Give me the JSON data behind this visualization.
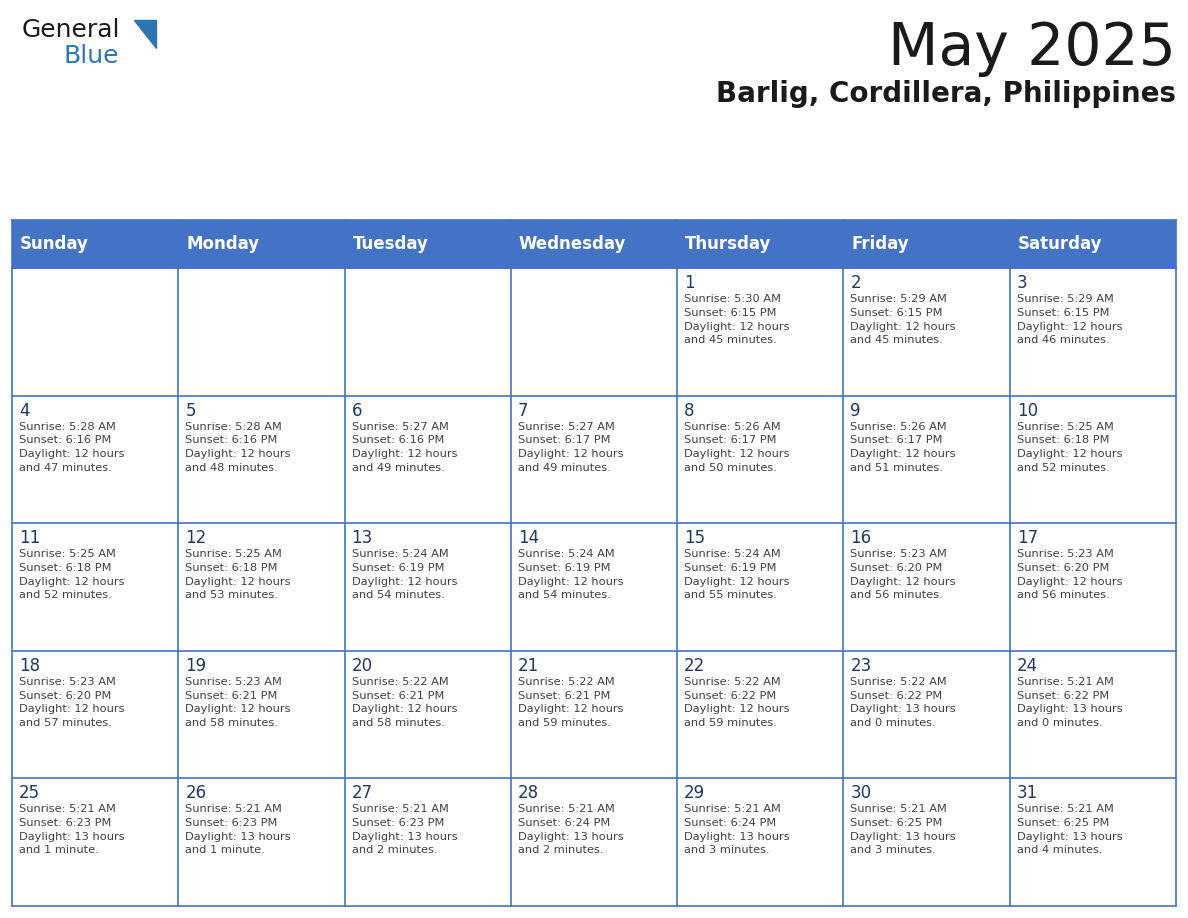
{
  "title": "May 2025",
  "subtitle": "Barlig, Cordillera, Philippines",
  "days_of_week": [
    "Sunday",
    "Monday",
    "Tuesday",
    "Wednesday",
    "Thursday",
    "Friday",
    "Saturday"
  ],
  "header_bg": "#4472C4",
  "header_text": "#FFFFFF",
  "cell_bg": "#FFFFFF",
  "day_number_color": "#1F3864",
  "text_color": "#404040",
  "line_color": "#4472C4",
  "title_color": "#1a1a1a",
  "subtitle_color": "#1a1a1a",
  "logo_text_color": "#1a1a1a",
  "logo_blue_color": "#2E75B6",
  "weeks": [
    [
      {
        "day": null,
        "info": ""
      },
      {
        "day": null,
        "info": ""
      },
      {
        "day": null,
        "info": ""
      },
      {
        "day": null,
        "info": ""
      },
      {
        "day": 1,
        "info": "Sunrise: 5:30 AM\nSunset: 6:15 PM\nDaylight: 12 hours\nand 45 minutes."
      },
      {
        "day": 2,
        "info": "Sunrise: 5:29 AM\nSunset: 6:15 PM\nDaylight: 12 hours\nand 45 minutes."
      },
      {
        "day": 3,
        "info": "Sunrise: 5:29 AM\nSunset: 6:15 PM\nDaylight: 12 hours\nand 46 minutes."
      }
    ],
    [
      {
        "day": 4,
        "info": "Sunrise: 5:28 AM\nSunset: 6:16 PM\nDaylight: 12 hours\nand 47 minutes."
      },
      {
        "day": 5,
        "info": "Sunrise: 5:28 AM\nSunset: 6:16 PM\nDaylight: 12 hours\nand 48 minutes."
      },
      {
        "day": 6,
        "info": "Sunrise: 5:27 AM\nSunset: 6:16 PM\nDaylight: 12 hours\nand 49 minutes."
      },
      {
        "day": 7,
        "info": "Sunrise: 5:27 AM\nSunset: 6:17 PM\nDaylight: 12 hours\nand 49 minutes."
      },
      {
        "day": 8,
        "info": "Sunrise: 5:26 AM\nSunset: 6:17 PM\nDaylight: 12 hours\nand 50 minutes."
      },
      {
        "day": 9,
        "info": "Sunrise: 5:26 AM\nSunset: 6:17 PM\nDaylight: 12 hours\nand 51 minutes."
      },
      {
        "day": 10,
        "info": "Sunrise: 5:25 AM\nSunset: 6:18 PM\nDaylight: 12 hours\nand 52 minutes."
      }
    ],
    [
      {
        "day": 11,
        "info": "Sunrise: 5:25 AM\nSunset: 6:18 PM\nDaylight: 12 hours\nand 52 minutes."
      },
      {
        "day": 12,
        "info": "Sunrise: 5:25 AM\nSunset: 6:18 PM\nDaylight: 12 hours\nand 53 minutes."
      },
      {
        "day": 13,
        "info": "Sunrise: 5:24 AM\nSunset: 6:19 PM\nDaylight: 12 hours\nand 54 minutes."
      },
      {
        "day": 14,
        "info": "Sunrise: 5:24 AM\nSunset: 6:19 PM\nDaylight: 12 hours\nand 54 minutes."
      },
      {
        "day": 15,
        "info": "Sunrise: 5:24 AM\nSunset: 6:19 PM\nDaylight: 12 hours\nand 55 minutes."
      },
      {
        "day": 16,
        "info": "Sunrise: 5:23 AM\nSunset: 6:20 PM\nDaylight: 12 hours\nand 56 minutes."
      },
      {
        "day": 17,
        "info": "Sunrise: 5:23 AM\nSunset: 6:20 PM\nDaylight: 12 hours\nand 56 minutes."
      }
    ],
    [
      {
        "day": 18,
        "info": "Sunrise: 5:23 AM\nSunset: 6:20 PM\nDaylight: 12 hours\nand 57 minutes."
      },
      {
        "day": 19,
        "info": "Sunrise: 5:23 AM\nSunset: 6:21 PM\nDaylight: 12 hours\nand 58 minutes."
      },
      {
        "day": 20,
        "info": "Sunrise: 5:22 AM\nSunset: 6:21 PM\nDaylight: 12 hours\nand 58 minutes."
      },
      {
        "day": 21,
        "info": "Sunrise: 5:22 AM\nSunset: 6:21 PM\nDaylight: 12 hours\nand 59 minutes."
      },
      {
        "day": 22,
        "info": "Sunrise: 5:22 AM\nSunset: 6:22 PM\nDaylight: 12 hours\nand 59 minutes."
      },
      {
        "day": 23,
        "info": "Sunrise: 5:22 AM\nSunset: 6:22 PM\nDaylight: 13 hours\nand 0 minutes."
      },
      {
        "day": 24,
        "info": "Sunrise: 5:21 AM\nSunset: 6:22 PM\nDaylight: 13 hours\nand 0 minutes."
      }
    ],
    [
      {
        "day": 25,
        "info": "Sunrise: 5:21 AM\nSunset: 6:23 PM\nDaylight: 13 hours\nand 1 minute."
      },
      {
        "day": 26,
        "info": "Sunrise: 5:21 AM\nSunset: 6:23 PM\nDaylight: 13 hours\nand 1 minute."
      },
      {
        "day": 27,
        "info": "Sunrise: 5:21 AM\nSunset: 6:23 PM\nDaylight: 13 hours\nand 2 minutes."
      },
      {
        "day": 28,
        "info": "Sunrise: 5:21 AM\nSunset: 6:24 PM\nDaylight: 13 hours\nand 2 minutes."
      },
      {
        "day": 29,
        "info": "Sunrise: 5:21 AM\nSunset: 6:24 PM\nDaylight: 13 hours\nand 3 minutes."
      },
      {
        "day": 30,
        "info": "Sunrise: 5:21 AM\nSunset: 6:25 PM\nDaylight: 13 hours\nand 3 minutes."
      },
      {
        "day": 31,
        "info": "Sunrise: 5:21 AM\nSunset: 6:25 PM\nDaylight: 13 hours\nand 4 minutes."
      }
    ]
  ]
}
